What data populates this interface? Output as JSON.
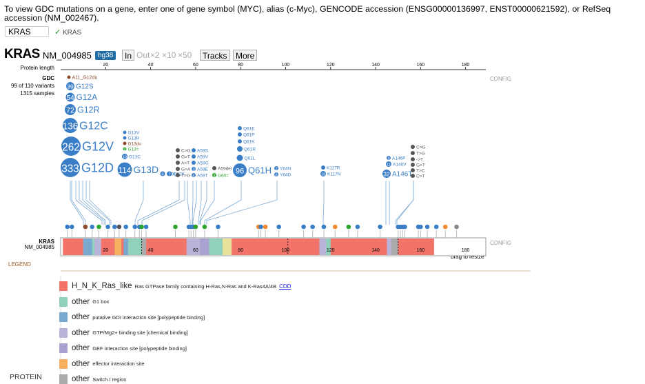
{
  "instructions": "To view GDC mutations on a gene, enter one of gene symbol (MYC), alias (c-Myc), GENCODE accession (ENSG00000136997, ENST00000621592), or RefSeq accession (NM_002467).",
  "search": {
    "value": "KRAS",
    "match_text": "KRAS",
    "check_glyph": "✓"
  },
  "header": {
    "gene": "KRAS",
    "accession": "NM_004985",
    "genome": "hg38",
    "zoom": {
      "in": "In",
      "out": "Out",
      "x2": "×2",
      "x10": "×10",
      "x50": "×50"
    },
    "tracks": "Tracks",
    "more": "More"
  },
  "ruler": {
    "label": "Protein length",
    "ticks": [
      "20",
      "40",
      "60",
      "80",
      "100",
      "120",
      "140",
      "160",
      "180"
    ],
    "length": 189
  },
  "track_info": {
    "name": "GDC",
    "variants": "99 of 110 variants",
    "samples": "1315 samples",
    "config": "CONFIG"
  },
  "protein_track": {
    "gene": "KRAS",
    "accession": "NM_004985",
    "ticks": [
      "20",
      "40",
      "60",
      "80",
      "100",
      "120",
      "140",
      "160",
      "180"
    ],
    "config": "CONFIG",
    "drag": "drag to resize"
  },
  "colors": {
    "missense": "#3a7ec8",
    "nonsense": "#8b4a2c",
    "frameshift": "#555555",
    "silent": "#2ea52e",
    "splice": "#ef8b2c",
    "ragged": "#888888"
  },
  "mutations": [
    {
      "label": "A11_G12du",
      "count": "",
      "type": "nonsense",
      "pos": 11
    },
    {
      "label": "G12S",
      "count": "39",
      "type": "missense",
      "pos": 12
    },
    {
      "label": "G12A",
      "count": "54",
      "type": "missense",
      "pos": 12
    },
    {
      "label": "G12R",
      "count": "72",
      "type": "missense",
      "pos": 12
    },
    {
      "label": "G12C",
      "count": "136",
      "type": "missense",
      "pos": 12
    },
    {
      "label": "G12V",
      "count": "262",
      "type": "missense",
      "pos": 12
    },
    {
      "label": "G12D",
      "count": "333",
      "type": "missense",
      "pos": 12
    },
    {
      "label": "G13V",
      "count": "",
      "type": "missense",
      "pos": 13
    },
    {
      "label": "G13R",
      "count": "",
      "type": "missense",
      "pos": 13
    },
    {
      "label": "G13du",
      "count": "",
      "type": "nonsense",
      "pos": 13
    },
    {
      "label": "G13=",
      "count": "2",
      "type": "silent",
      "pos": 13
    },
    {
      "label": "G13C",
      "count": "10",
      "type": "missense",
      "pos": 13
    },
    {
      "label": "G13D",
      "count": "114",
      "type": "missense",
      "pos": 13
    },
    {
      "label": "L19F",
      "count": "5",
      "type": "missense",
      "pos": 19
    },
    {
      "label": "Q22K",
      "count": "7",
      "type": "missense",
      "pos": 22
    },
    {
      "label": "C>G",
      "count": "",
      "type": "frameshift",
      "pos": 36
    },
    {
      "label": "G>T",
      "count": "",
      "type": "frameshift",
      "pos": 36
    },
    {
      "label": "A>T",
      "count": "",
      "type": "frameshift",
      "pos": 36
    },
    {
      "label": "G>A",
      "count": "",
      "type": "frameshift",
      "pos": 36
    },
    {
      "label": "T>G",
      "count": "",
      "type": "frameshift",
      "pos": 36
    },
    {
      "label": "A59S",
      "count": "",
      "type": "missense",
      "pos": 59
    },
    {
      "label": "A59V",
      "count": "",
      "type": "missense",
      "pos": 59
    },
    {
      "label": "A59G",
      "count": "",
      "type": "missense",
      "pos": 59
    },
    {
      "label": "A59E",
      "count": "3",
      "type": "missense",
      "pos": 59
    },
    {
      "label": "A59T",
      "count": "4",
      "type": "missense",
      "pos": 59
    },
    {
      "label": "A59del",
      "count": "",
      "type": "frameshift",
      "pos": 59
    },
    {
      "label": "G60=",
      "count": "3",
      "type": "silent",
      "pos": 60
    },
    {
      "label": "Q61E",
      "count": "",
      "type": "missense",
      "pos": 61
    },
    {
      "label": "Q61P",
      "count": "",
      "type": "missense",
      "pos": 61
    },
    {
      "label": "Q61K",
      "count": "",
      "type": "missense",
      "pos": 61
    },
    {
      "label": "Q61R",
      "count": "",
      "type": "missense",
      "pos": 61
    },
    {
      "label": "Q61L",
      "count": "",
      "type": "missense",
      "pos": 61
    },
    {
      "label": "Q61H",
      "count": "96",
      "type": "missense",
      "pos": 61
    },
    {
      "label": "Y64N",
      "count": "2",
      "type": "missense",
      "pos": 64
    },
    {
      "label": "Y64D",
      "count": "6",
      "type": "missense",
      "pos": 64
    },
    {
      "label": "K117R",
      "count": "",
      "type": "missense",
      "pos": 117
    },
    {
      "label": "K117N",
      "count": "13",
      "type": "missense",
      "pos": 117
    },
    {
      "label": "A146P",
      "count": "3",
      "type": "missense",
      "pos": 146
    },
    {
      "label": "A146V",
      "count": "11",
      "type": "missense",
      "pos": 146
    },
    {
      "label": "A146T",
      "count": "32",
      "type": "missense",
      "pos": 146
    },
    {
      "label": "C>G",
      "count": "",
      "type": "frameshift",
      "pos": 150
    },
    {
      "label": "T>G",
      "count": "",
      "type": "frameshift",
      "pos": 150
    },
    {
      "label": "->T",
      "count": "",
      "type": "frameshift",
      "pos": 150
    },
    {
      "label": "G>T",
      "count": "",
      "type": "frameshift",
      "pos": 150
    },
    {
      "label": "T>C",
      "count": "",
      "type": "frameshift",
      "pos": 150
    },
    {
      "label": "C>T",
      "count": "",
      "type": "frameshift",
      "pos": 150
    }
  ],
  "legend": {
    "title": "LEGEND",
    "section": "PROTEIN",
    "items": [
      {
        "name": "H_N_K_Ras_like",
        "desc": "Ras GTPase family containing H-Ras,N-Ras and K-Ras4A/4B",
        "link": "CDD",
        "color": "#f1736a"
      },
      {
        "name": "other",
        "desc": "G1 box",
        "color": "#8fd1bd"
      },
      {
        "name": "other",
        "desc": "putative GDI interaction site [polypeptide binding]",
        "color": "#7aa9cf"
      },
      {
        "name": "other",
        "desc": "GTP/Mg2+ binding site [chemical binding]",
        "color": "#b9b4d8"
      },
      {
        "name": "other",
        "desc": "GEF interaction site [polypeptide binding]",
        "color": "#a9a1cf"
      },
      {
        "name": "other",
        "desc": "effector interaction site",
        "color": "#f5b060"
      },
      {
        "name": "other",
        "desc": "Switch I region",
        "color": "#aaaaaa"
      }
    ]
  }
}
